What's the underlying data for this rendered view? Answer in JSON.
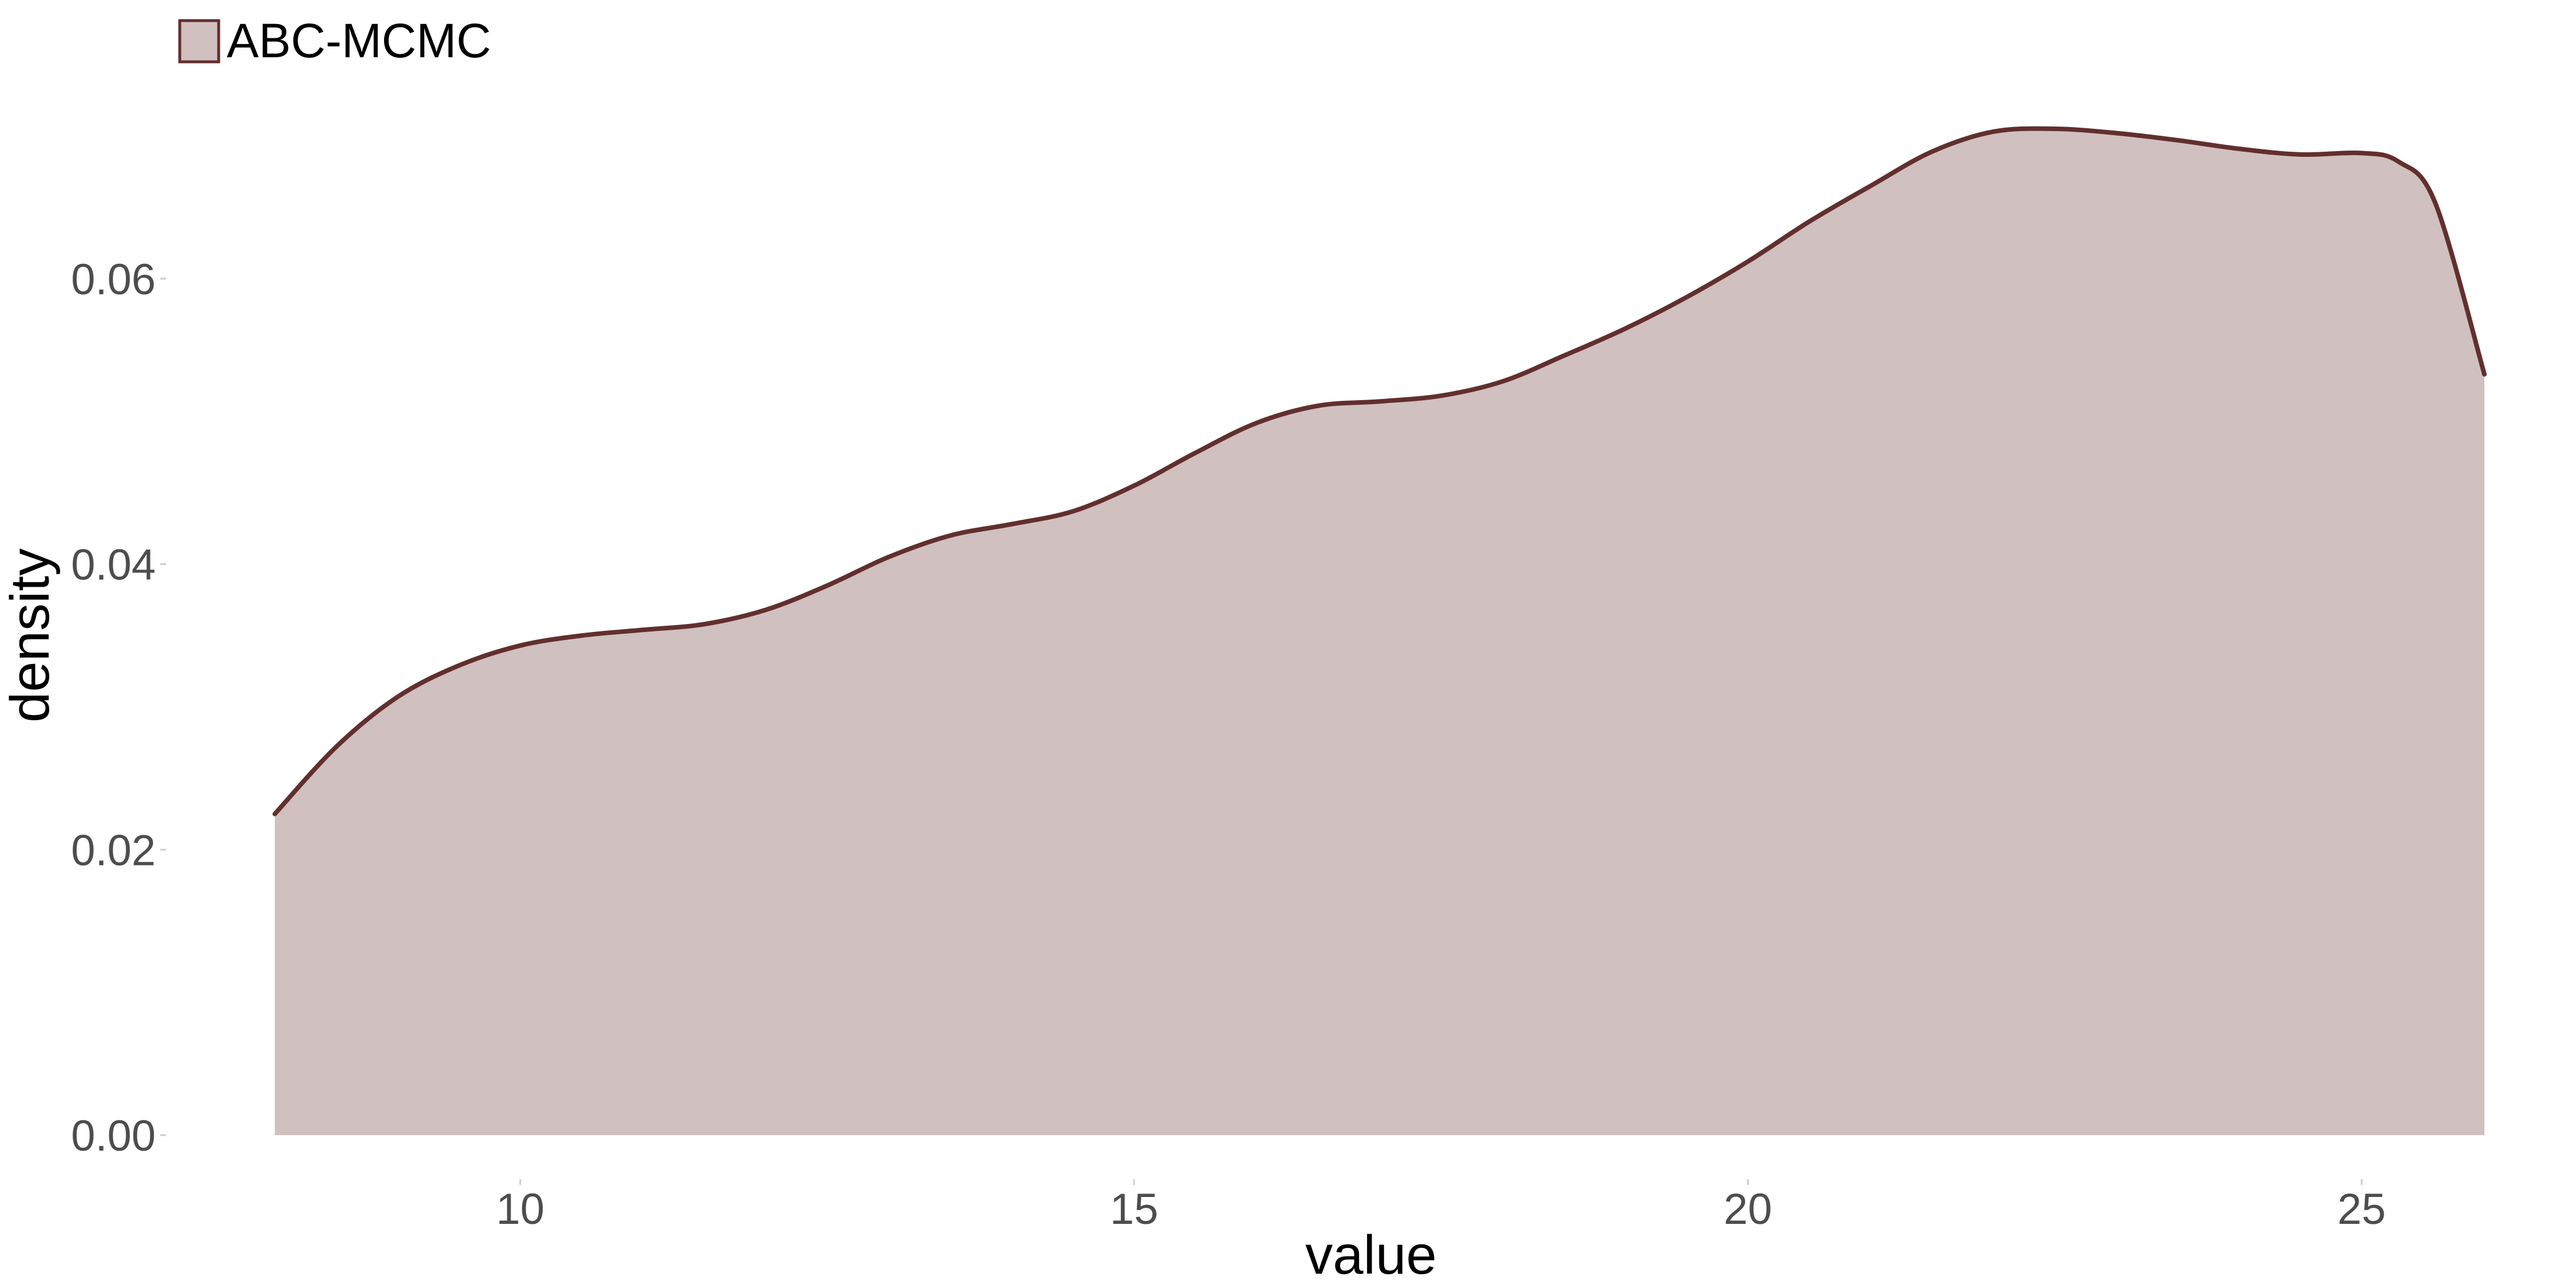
{
  "chart_data": {
    "type": "area",
    "title": "",
    "xlabel": "value",
    "ylabel": "density",
    "xlim": [
      8.0,
      26.0
    ],
    "ylim": [
      0.0,
      0.0705
    ],
    "x_ticks": [
      10,
      15,
      20,
      25
    ],
    "x_tick_labels": [
      "10",
      "15",
      "20",
      "25"
    ],
    "y_ticks": [
      0.0,
      0.02,
      0.04,
      0.06
    ],
    "y_tick_labels": [
      "0.00",
      "0.02",
      "0.04",
      "0.06"
    ],
    "grid": false,
    "legend_position": "top-left",
    "series": [
      {
        "name": "ABC-MCMC",
        "fill_color": "#d1c0c0",
        "line_color": "#612f2e",
        "x": [
          8.0,
          8.5,
          9.0,
          9.5,
          10.0,
          10.5,
          11.0,
          11.5,
          12.0,
          12.5,
          13.0,
          13.5,
          14.0,
          14.5,
          15.0,
          15.5,
          16.0,
          16.5,
          17.0,
          17.5,
          18.0,
          18.5,
          19.0,
          19.5,
          20.0,
          20.5,
          21.0,
          21.5,
          22.0,
          22.5,
          23.0,
          23.5,
          24.0,
          24.5,
          25.0,
          25.3,
          25.6,
          26.0
        ],
        "y": [
          0.0225,
          0.0272,
          0.0307,
          0.0329,
          0.0343,
          0.035,
          0.0354,
          0.0358,
          0.0368,
          0.0385,
          0.0405,
          0.042,
          0.0428,
          0.0437,
          0.0455,
          0.0478,
          0.0499,
          0.0511,
          0.0514,
          0.0518,
          0.0528,
          0.0546,
          0.0565,
          0.0587,
          0.0612,
          0.064,
          0.0665,
          0.0689,
          0.0703,
          0.0705,
          0.0702,
          0.0697,
          0.0691,
          0.0687,
          0.0688,
          0.0682,
          0.0653,
          0.0533
        ]
      }
    ]
  }
}
